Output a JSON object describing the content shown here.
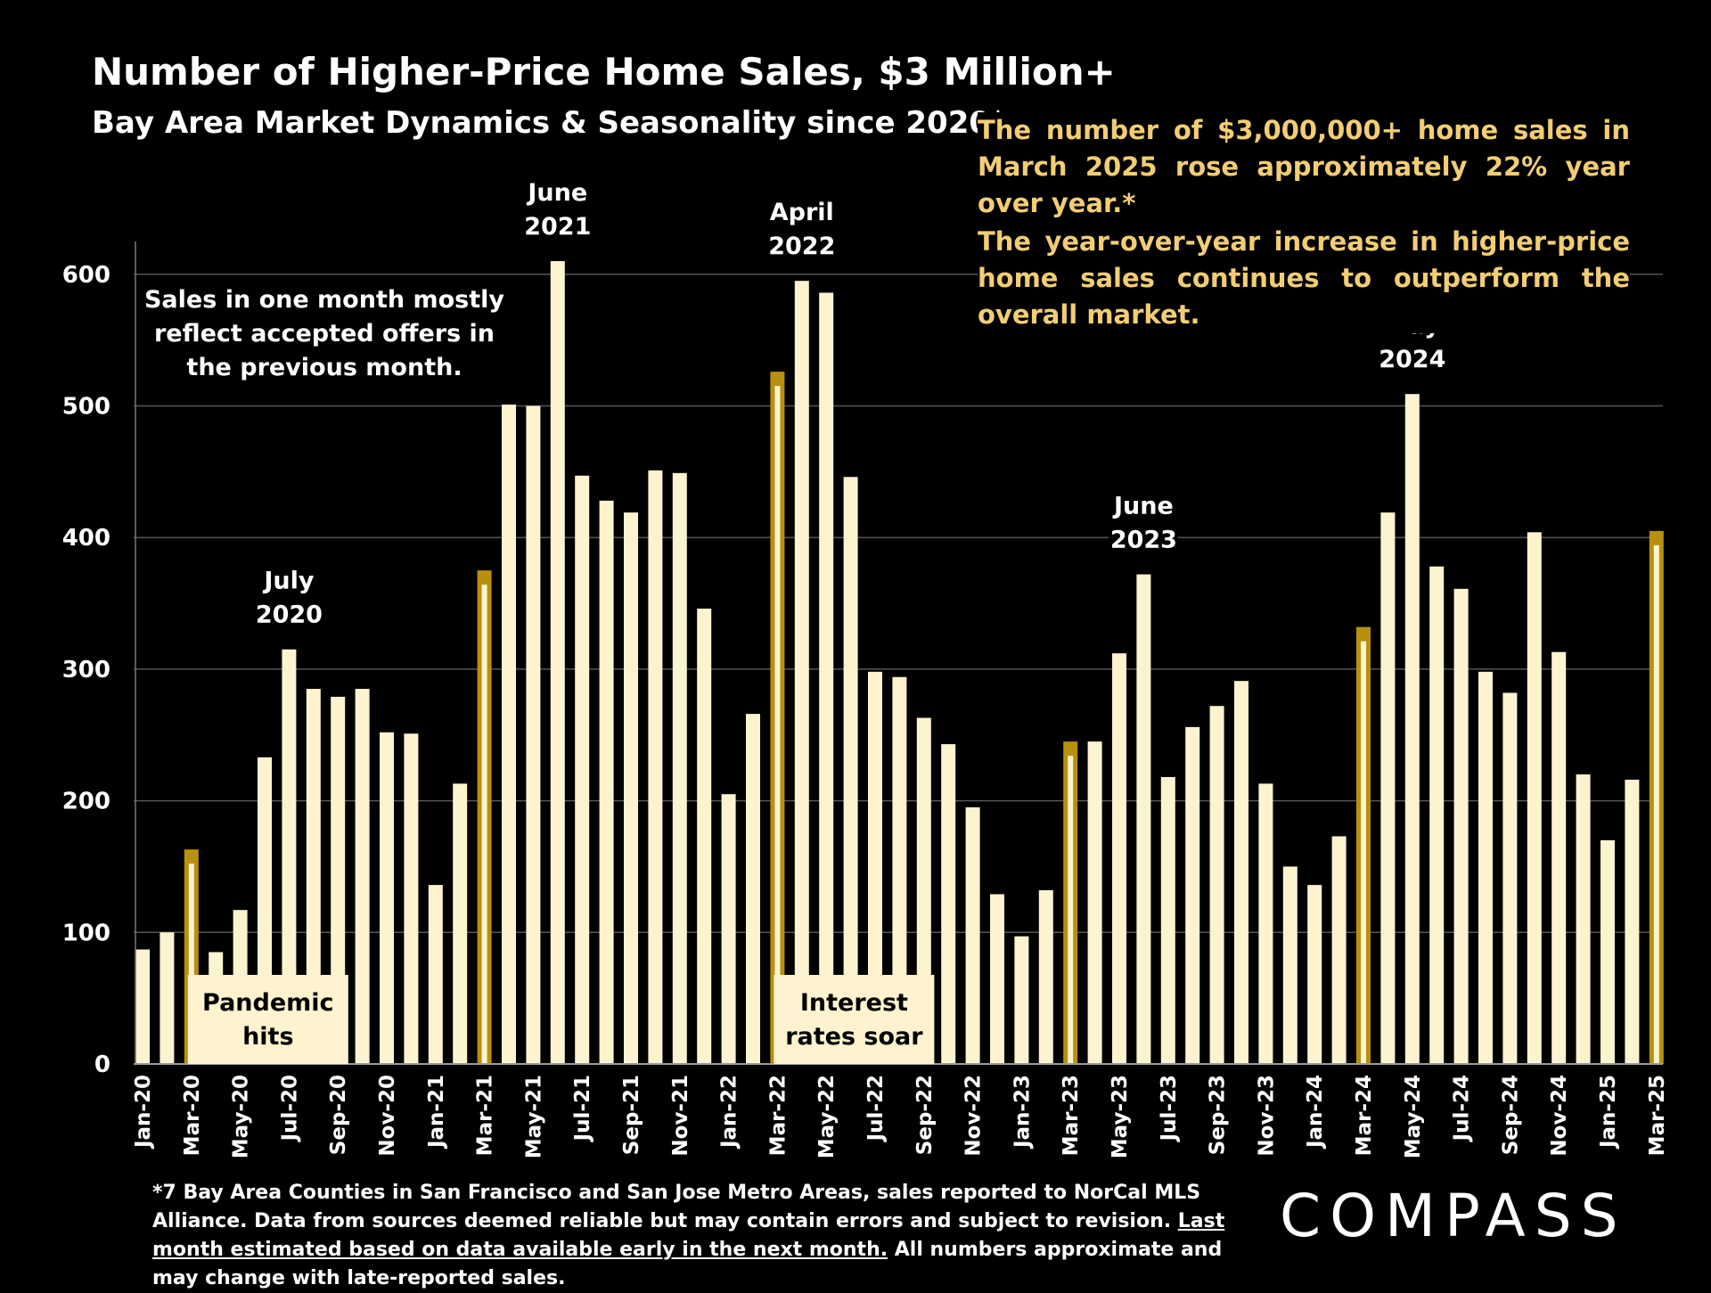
{
  "title": "Number of Higher-Price Home Sales, $3 Million+",
  "subtitle": "Bay Area Market Dynamics & Seasonality since 2020*",
  "callout_1": "The number of $3,000,000+ home sales in March 2025 rose approximately 22% year over year.*",
  "callout_2": "The year-over-year increase in higher-price home sales continues to outperform the overall market.",
  "footnote_part1": "*7 Bay Area Counties in San Francisco and San Jose Metro Areas, sales reported to NorCal MLS Alliance.  Data from sources deemed reliable but may contain errors and subject to revision. ",
  "footnote_underlined": "Last month estimated based on data available early in the next month.",
  "footnote_part2": " All numbers approximate and may change with late-reported sales.",
  "logo": "COMPASS",
  "colors": {
    "bar": "#fdf3cf",
    "highlight": "#b8900e",
    "callout_text": "#f2cd74",
    "background": "#000000",
    "grid": "#555555"
  },
  "chart_data": {
    "type": "bar",
    "categories": [
      "Jan-20",
      "Feb-20",
      "Mar-20",
      "Apr-20",
      "May-20",
      "Jun-20",
      "Jul-20",
      "Aug-20",
      "Sep-20",
      "Oct-20",
      "Nov-20",
      "Dec-20",
      "Jan-21",
      "Feb-21",
      "Mar-21",
      "Apr-21",
      "May-21",
      "Jun-21",
      "Jul-21",
      "Aug-21",
      "Sep-21",
      "Oct-21",
      "Nov-21",
      "Dec-21",
      "Jan-22",
      "Feb-22",
      "Mar-22",
      "Apr-22",
      "May-22",
      "Jun-22",
      "Jul-22",
      "Aug-22",
      "Sep-22",
      "Oct-22",
      "Nov-22",
      "Dec-22",
      "Jan-23",
      "Feb-23",
      "Mar-23",
      "Apr-23",
      "May-23",
      "Jun-23",
      "Jul-23",
      "Aug-23",
      "Sep-23",
      "Oct-23",
      "Nov-23",
      "Dec-23",
      "Jan-24",
      "Feb-24",
      "Mar-24",
      "Apr-24",
      "May-24",
      "Jun-24",
      "Jul-24",
      "Aug-24",
      "Sep-24",
      "Oct-24",
      "Nov-24",
      "Dec-24",
      "Jan-25",
      "Feb-25",
      "Mar-25"
    ],
    "tick_labels": [
      "Jan-20",
      "Mar-20",
      "May-20",
      "Jul-20",
      "Sep-20",
      "Nov-20",
      "Jan-21",
      "Mar-21",
      "May-21",
      "Jul-21",
      "Sep-21",
      "Nov-21",
      "Jan-22",
      "Mar-22",
      "May-22",
      "Jul-22",
      "Sep-22",
      "Nov-22",
      "Jan-23",
      "Mar-23",
      "May-23",
      "Jul-23",
      "Sep-23",
      "Nov-23",
      "Jan-24",
      "Mar-24",
      "May-24",
      "Jul-24",
      "Sep-24",
      "Nov-24",
      "Jan-25",
      "Mar-25"
    ],
    "values": [
      87,
      100,
      163,
      85,
      117,
      233,
      315,
      285,
      279,
      285,
      252,
      251,
      136,
      213,
      375,
      501,
      500,
      610,
      447,
      428,
      419,
      451,
      449,
      346,
      205,
      266,
      526,
      595,
      586,
      446,
      298,
      294,
      263,
      243,
      195,
      129,
      97,
      132,
      245,
      245,
      312,
      372,
      218,
      256,
      272,
      291,
      213,
      150,
      136,
      173,
      332,
      419,
      509,
      378,
      361,
      298,
      282,
      404,
      313,
      220,
      170,
      216,
      405
    ],
    "highlight_indices": [
      2,
      14,
      26,
      38,
      50,
      62
    ],
    "yticks": [
      0,
      100,
      200,
      300,
      400,
      500,
      600
    ],
    "ylim": [
      0,
      625
    ],
    "grid": true,
    "annotations": [
      {
        "text_lines": [
          "July",
          "2020"
        ],
        "category": "Jul-20"
      },
      {
        "text_lines": [
          "June",
          "2021"
        ],
        "category": "Jun-21"
      },
      {
        "text_lines": [
          "April",
          "2022"
        ],
        "category": "Apr-22"
      },
      {
        "text_lines": [
          "June",
          "2023"
        ],
        "category": "Jun-23"
      },
      {
        "text_lines": [
          "May",
          "2024"
        ],
        "category": "May-24"
      }
    ],
    "note_text_lines": [
      "Sales in one month mostly",
      "reflect accepted offers in",
      "the previous month."
    ],
    "boxed_labels": [
      {
        "text_lines": [
          "Pandemic",
          "hits"
        ],
        "category": "Mar-20"
      },
      {
        "text_lines": [
          "Interest",
          "rates soar"
        ],
        "category": "Mar-22"
      }
    ]
  }
}
